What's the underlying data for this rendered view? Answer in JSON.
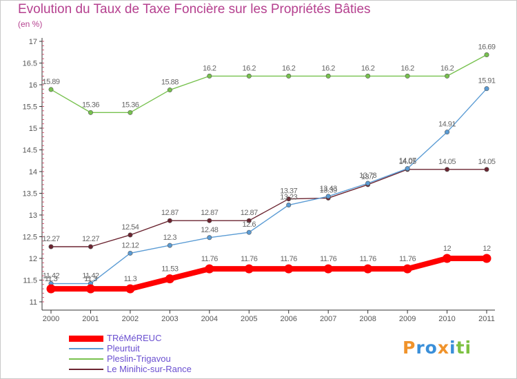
{
  "header": {
    "title": "Evolution du Taux de Taxe Foncière sur les Propriétés Bâties",
    "subtitle": "(en %)"
  },
  "chart_data": {
    "type": "line",
    "categories": [
      "2000",
      "2001",
      "2002",
      "2003",
      "2004",
      "2005",
      "2006",
      "2007",
      "2008",
      "2009",
      "2010",
      "2011"
    ],
    "ylim": [
      11,
      17
    ],
    "yticks": [
      11,
      11.5,
      12,
      12.5,
      13,
      13.5,
      14,
      14.5,
      15,
      15.5,
      16,
      16.5,
      17
    ],
    "ytick_labels": [
      "11",
      "11.5",
      "12",
      "12.5",
      "13",
      "13.5",
      "14",
      "14.5",
      "15",
      "15.5",
      "16",
      "16.5",
      "17"
    ],
    "grid": false,
    "legend_position": "bottom-left",
    "series": [
      {
        "name": "TRéMéREUC",
        "color": "#ff0000",
        "values": [
          11.3,
          11.3,
          11.3,
          11.53,
          11.76,
          11.76,
          11.76,
          11.76,
          11.76,
          11.76,
          12,
          12
        ],
        "labels": [
          "11.3",
          "11.3",
          "11.3",
          "11.53",
          "11.76",
          "11.76",
          "11.76",
          "11.76",
          "11.76",
          "11.76",
          "12",
          "12"
        ]
      },
      {
        "name": "Pleurtuit",
        "color": "#5a9bd4",
        "values": [
          11.42,
          11.42,
          12.12,
          12.3,
          12.48,
          12.6,
          13.23,
          13.43,
          13.73,
          14.07,
          14.91,
          15.91
        ],
        "labels": [
          "11.42",
          "11.42",
          "12.12",
          "12.3",
          "12.48",
          "12.6",
          "13.23",
          "13.43",
          "13.73",
          "14.07",
          "14.91",
          "15.91"
        ]
      },
      {
        "name": "Pleslin-Trigavou",
        "color": "#77c14e",
        "values": [
          15.89,
          15.36,
          15.36,
          15.88,
          16.2,
          16.2,
          16.2,
          16.2,
          16.2,
          16.2,
          16.2,
          16.69
        ],
        "labels": [
          "15.89",
          "15.36",
          "15.36",
          "15.88",
          "16.2",
          "16.2",
          "16.2",
          "16.2",
          "16.2",
          "16.2",
          "16.2",
          "16.69"
        ]
      },
      {
        "name": "Le Minihic-sur-Rance",
        "color": "#6b2430",
        "values": [
          12.27,
          12.27,
          12.54,
          12.87,
          12.87,
          12.87,
          13.37,
          13.39,
          13.7,
          14.05,
          14.05,
          14.05
        ],
        "labels": [
          "12.27",
          "12.27",
          "12.54",
          "12.87",
          "12.87",
          "12.87",
          "13.37",
          "13.39",
          "13.7",
          "14.05",
          "14.05",
          "14.05"
        ]
      }
    ]
  },
  "logo": {
    "letters": [
      "P",
      "r",
      "o",
      "x",
      "i",
      "t",
      "i"
    ],
    "colors": [
      "#f0932b",
      "#3a8fd9",
      "#3a8fd9",
      "#f0932b",
      "#3a8fd9",
      "#7dc142",
      "#7dc142"
    ]
  }
}
